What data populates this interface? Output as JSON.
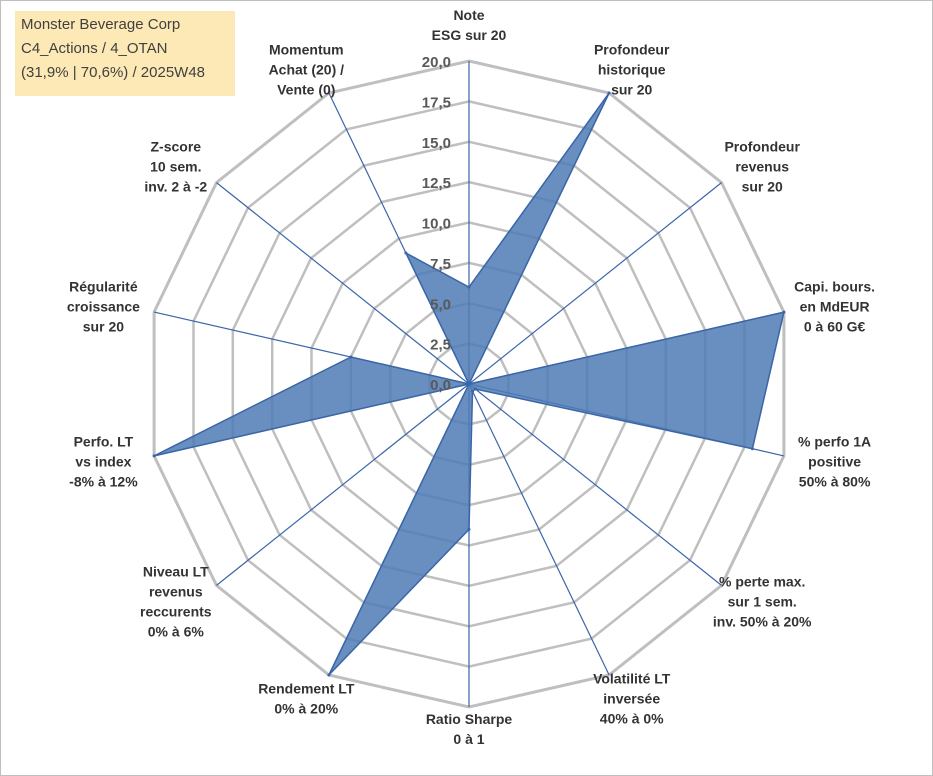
{
  "info_box": {
    "line1": "Monster Beverage Corp",
    "line2": "C4_Actions / 4_OTAN",
    "line3": "(31,9% | 70,6%) / 2025W48"
  },
  "colors": {
    "fill": "#4e7bb5",
    "outline": "#3a66a8",
    "grid": "#bfbfbf",
    "spoke": "#3a66a8"
  },
  "chart_data": {
    "type": "radar",
    "rlim": [
      0,
      20
    ],
    "ticks": [
      "0,0",
      "2,5",
      "5,0",
      "7,5",
      "10,0",
      "12,5",
      "15,0",
      "17,5",
      "20,0"
    ],
    "grid": true,
    "axes": [
      {
        "label": "Note\nESG sur 20",
        "value": 6
      },
      {
        "label": "Profondeur\nhistorique\nsur 20",
        "value": 20
      },
      {
        "label": "Profondeur\nrevenus\nsur 20",
        "value": 0
      },
      {
        "label": "Capi. bours.\nen MdEUR\n0 à 60 G€",
        "value": 20
      },
      {
        "label": "% perfo 1A\npositive\n50% à 80%",
        "value": 18
      },
      {
        "label": "% perte max.\nsur 1 sem.\ninv. 50% à 20%",
        "value": 0.5
      },
      {
        "label": "Volatilité LT\ninversée\n40% à 0%",
        "value": 0.5
      },
      {
        "label": "Ratio Sharpe\n0 à 1",
        "value": 9
      },
      {
        "label": "Rendement LT\n0% à 20%",
        "value": 20
      },
      {
        "label": "Niveau LT\nrevenus\nreccurents\n0% à 6%",
        "value": 0
      },
      {
        "label": "Perfo. LT\nvs index\n-8% à 12%",
        "value": 20
      },
      {
        "label": "Régularité\ncroissance\nsur 20",
        "value": 7.5
      },
      {
        "label": "Z-score\n10 sem.\ninv. 2 à -2",
        "value": 0
      },
      {
        "label": "Momentum\nAchat (20) /\nVente (0)",
        "value": 9
      }
    ]
  }
}
